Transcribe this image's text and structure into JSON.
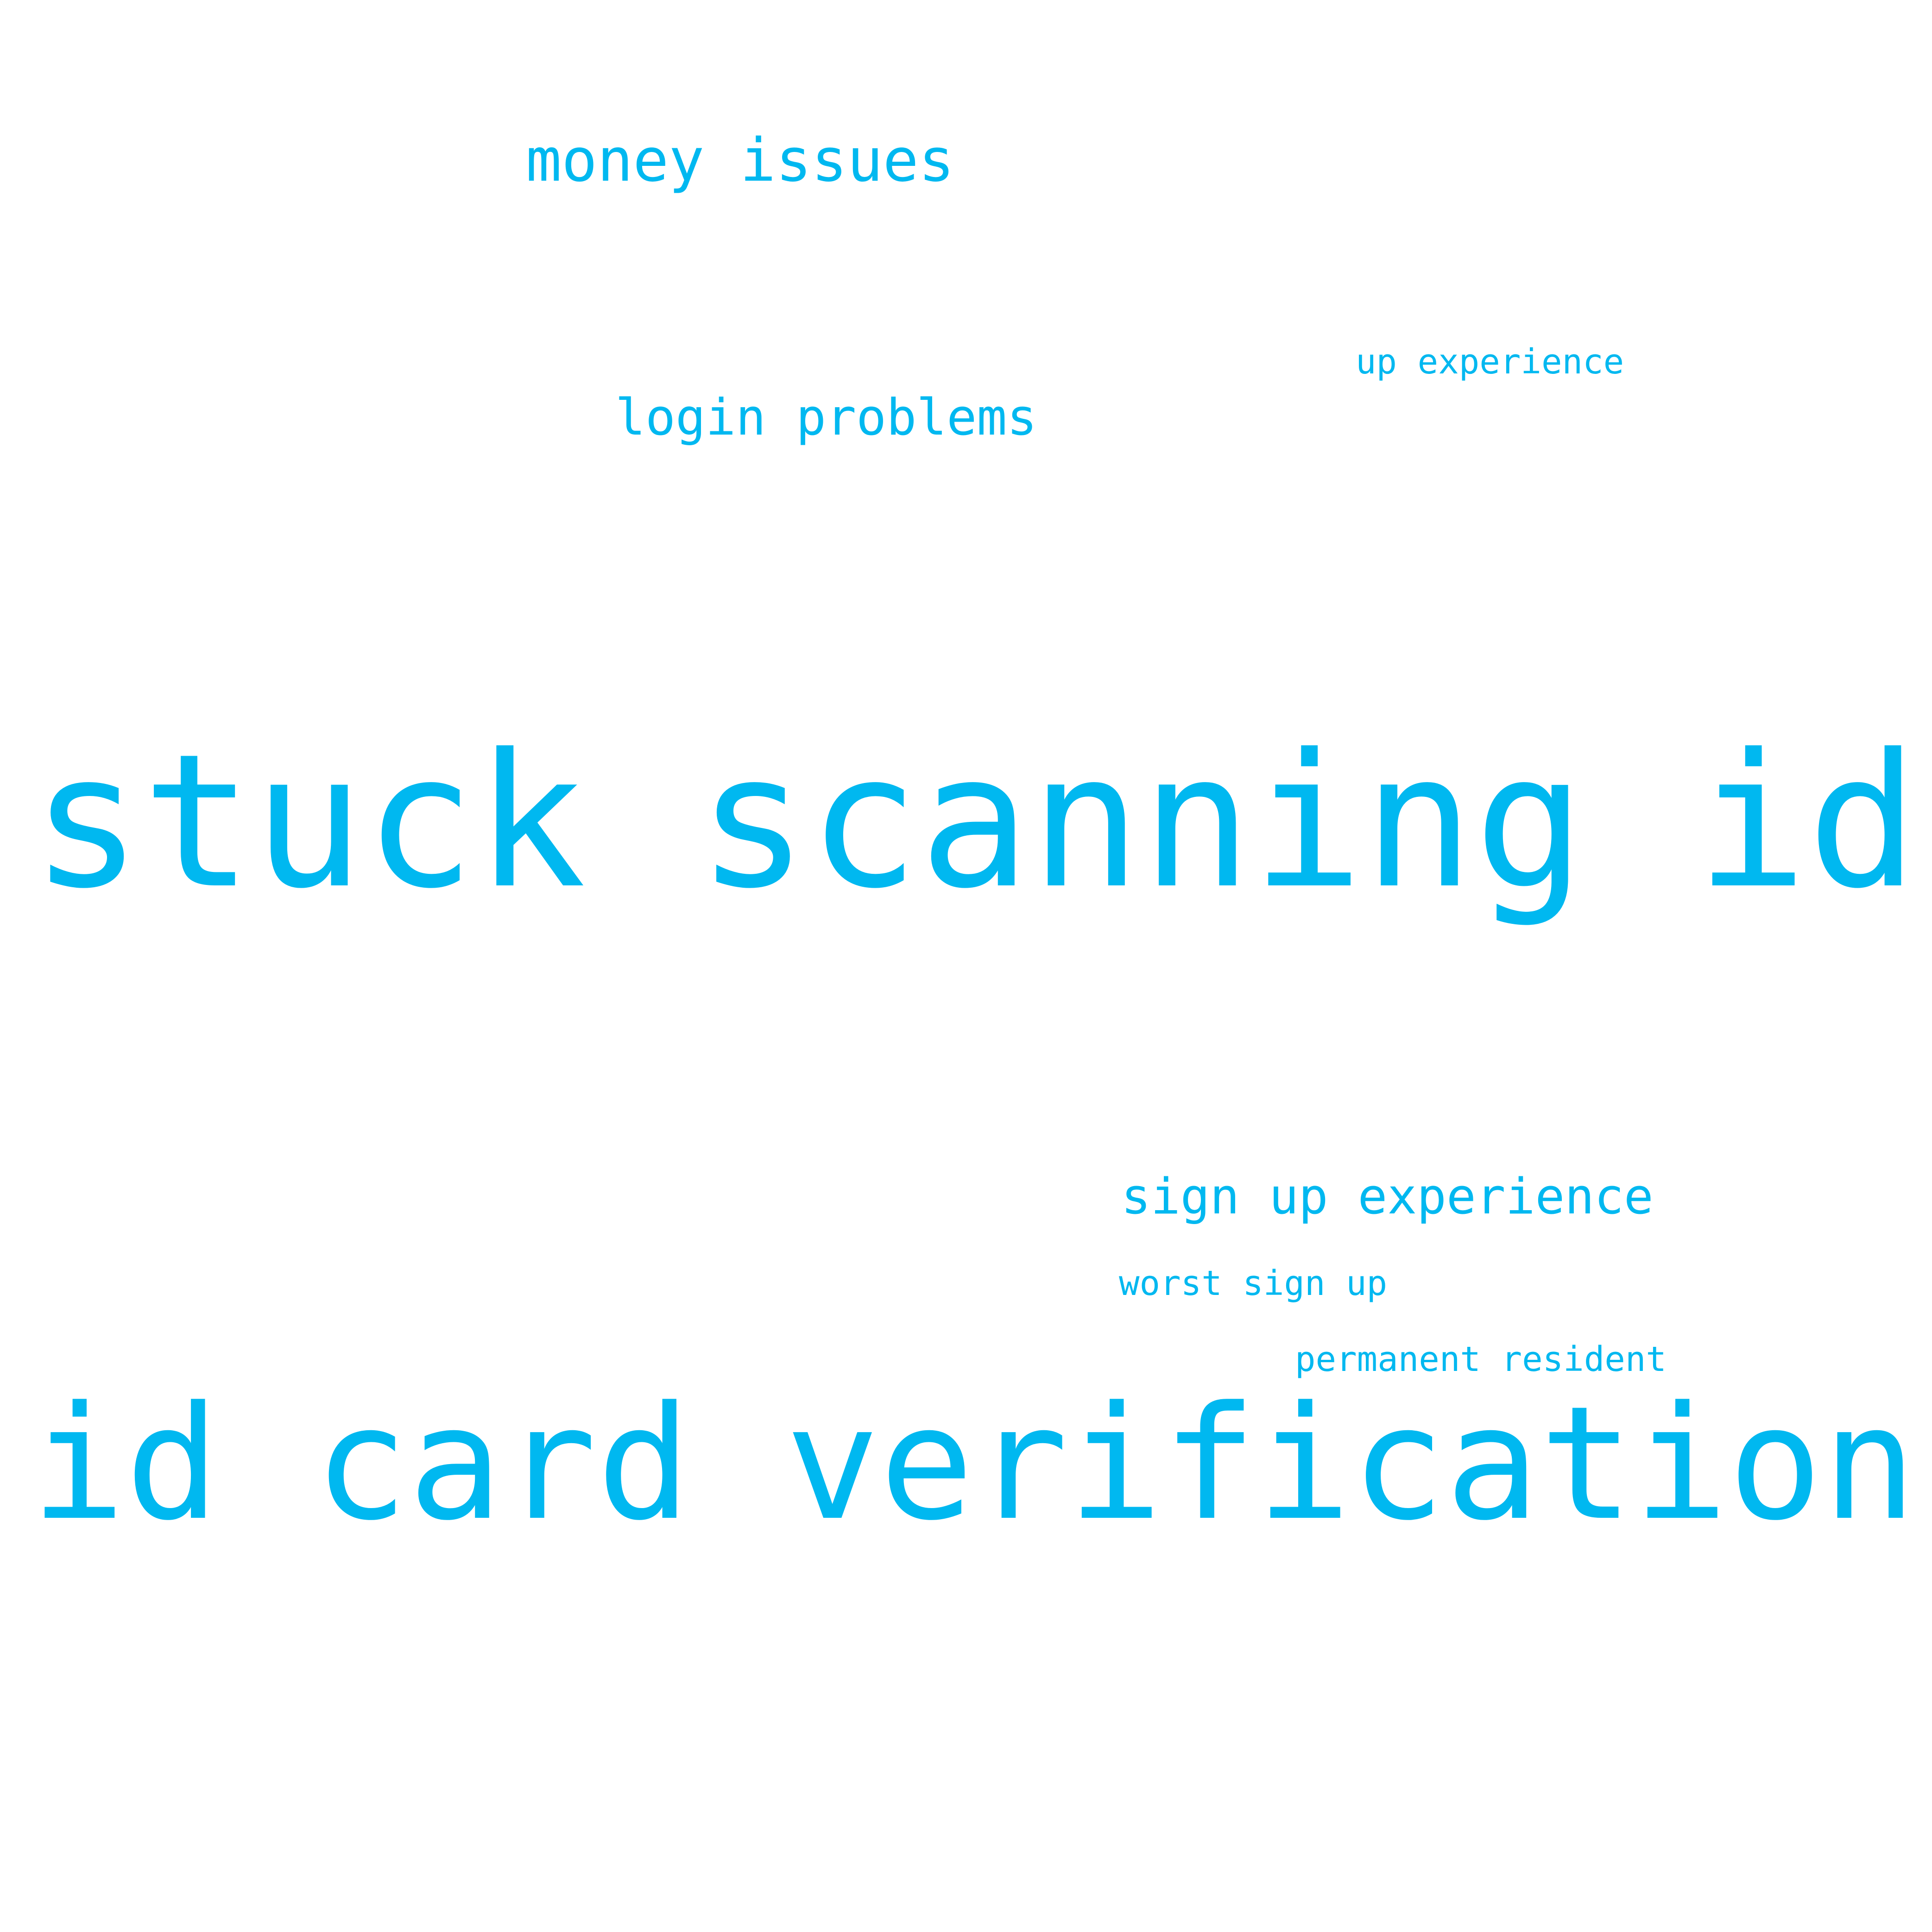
{
  "cloud": {
    "color": "#00b8f0",
    "background": "#ffffff",
    "words": {
      "stuck_scanning_id": "stuck scanning id",
      "id_card_verification": "id card verification",
      "money_issues": "money issues",
      "login_problems": "login problems",
      "up_experience": "up experience",
      "sign_up_experience": "sign up experience",
      "worst_sign_up": "worst sign up",
      "permanent_resident": "permanent resident"
    }
  }
}
